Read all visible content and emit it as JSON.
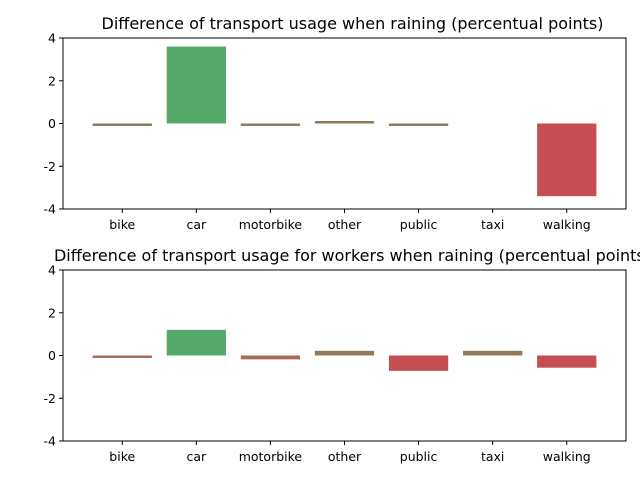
{
  "chart_data": [
    {
      "type": "bar",
      "title": "Difference of transport usage when raining (percentual points)",
      "categories": [
        "bike",
        "car",
        "motorbike",
        "other",
        "public",
        "taxi",
        "walking"
      ],
      "values": [
        -0.05,
        3.6,
        -0.05,
        0.08,
        -0.05,
        0.0,
        -3.4
      ],
      "colors": [
        "#8f7a5c",
        "#55a868",
        "#8f7a5c",
        "#8f7a5c",
        "#8f7a5c",
        "#8f7a5c",
        "#c44e52"
      ],
      "ylim": [
        -4,
        4
      ],
      "yticks": [
        -4,
        -2,
        0,
        2,
        4
      ],
      "xlabel": "",
      "ylabel": "",
      "grid": false
    },
    {
      "type": "bar",
      "title": "Difference of transport usage for workers when raining (percentual points)",
      "categories": [
        "bike",
        "car",
        "motorbike",
        "other",
        "public",
        "taxi",
        "walking"
      ],
      "values": [
        -0.05,
        1.2,
        -0.18,
        0.22,
        -0.72,
        0.22,
        -0.57
      ],
      "colors": [
        "#a86a58",
        "#55a868",
        "#a86a58",
        "#8f7a5c",
        "#c44e52",
        "#8f7a5c",
        "#c44e52"
      ],
      "ylim": [
        -4,
        4
      ],
      "yticks": [
        -4,
        -2,
        0,
        2,
        4
      ],
      "xlabel": "",
      "ylabel": "",
      "grid": false
    }
  ]
}
